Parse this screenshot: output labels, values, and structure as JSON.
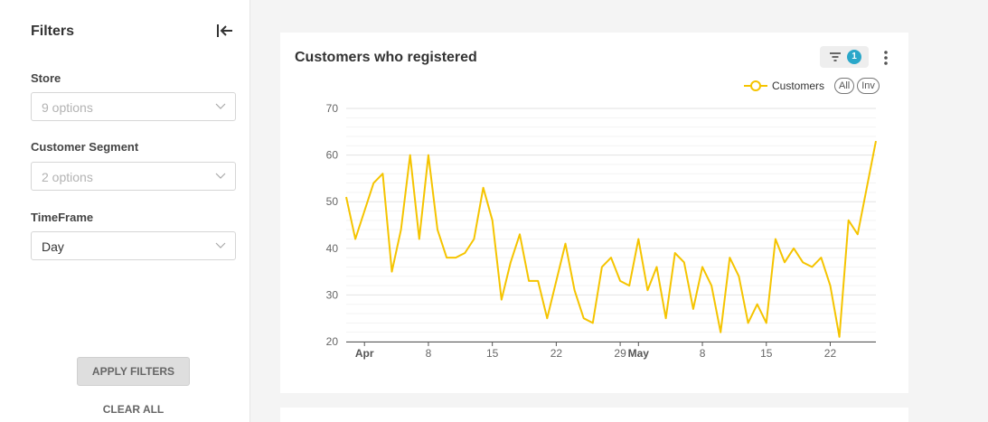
{
  "sidebar": {
    "title": "Filters",
    "fields": [
      {
        "label": "Store",
        "value": "9 options",
        "placeholder": true
      },
      {
        "label": "Customer Segment",
        "value": "2 options",
        "placeholder": true
      },
      {
        "label": "TimeFrame",
        "value": "Day",
        "placeholder": false
      }
    ],
    "apply_label": "APPLY FILTERS",
    "clear_label": "CLEAR ALL",
    "collapse_icon": "collapse-left-icon"
  },
  "card": {
    "title": "Customers who registered",
    "filter_count": "1",
    "legend": {
      "label": "Customers",
      "all_label": "All",
      "inv_label": "Inv"
    }
  },
  "colors": {
    "series": "#f5c400",
    "badge": "#2aa7c9"
  },
  "chart_data": {
    "type": "line",
    "title": "Customers who registered",
    "xlabel": "",
    "ylabel": "",
    "ylim": [
      20,
      70
    ],
    "yticks": [
      20,
      30,
      40,
      50,
      60,
      70
    ],
    "grid": true,
    "legend_position": "top-right",
    "x_ticks": [
      {
        "label": "Apr",
        "index": 2,
        "major": true
      },
      {
        "label": "8",
        "index": 9,
        "major": false
      },
      {
        "label": "15",
        "index": 16,
        "major": false
      },
      {
        "label": "22",
        "index": 23,
        "major": false
      },
      {
        "label": "29",
        "index": 30,
        "major": false
      },
      {
        "label": "May",
        "index": 32,
        "major": true
      },
      {
        "label": "8",
        "index": 39,
        "major": false
      },
      {
        "label": "15",
        "index": 46,
        "major": false
      },
      {
        "label": "22",
        "index": 53,
        "major": false
      }
    ],
    "series": [
      {
        "name": "Customers",
        "values": [
          51,
          42,
          48,
          54,
          56,
          35,
          44,
          60,
          42,
          60,
          44,
          38,
          38,
          39,
          42,
          53,
          46,
          29,
          37,
          43,
          33,
          33,
          25,
          33,
          41,
          31,
          25,
          24,
          36,
          38,
          33,
          32,
          42,
          31,
          36,
          25,
          39,
          37,
          27,
          36,
          32,
          22,
          38,
          34,
          24,
          28,
          24,
          42,
          37,
          40,
          37,
          36,
          38,
          32,
          21,
          46,
          43,
          53,
          63
        ]
      }
    ]
  }
}
